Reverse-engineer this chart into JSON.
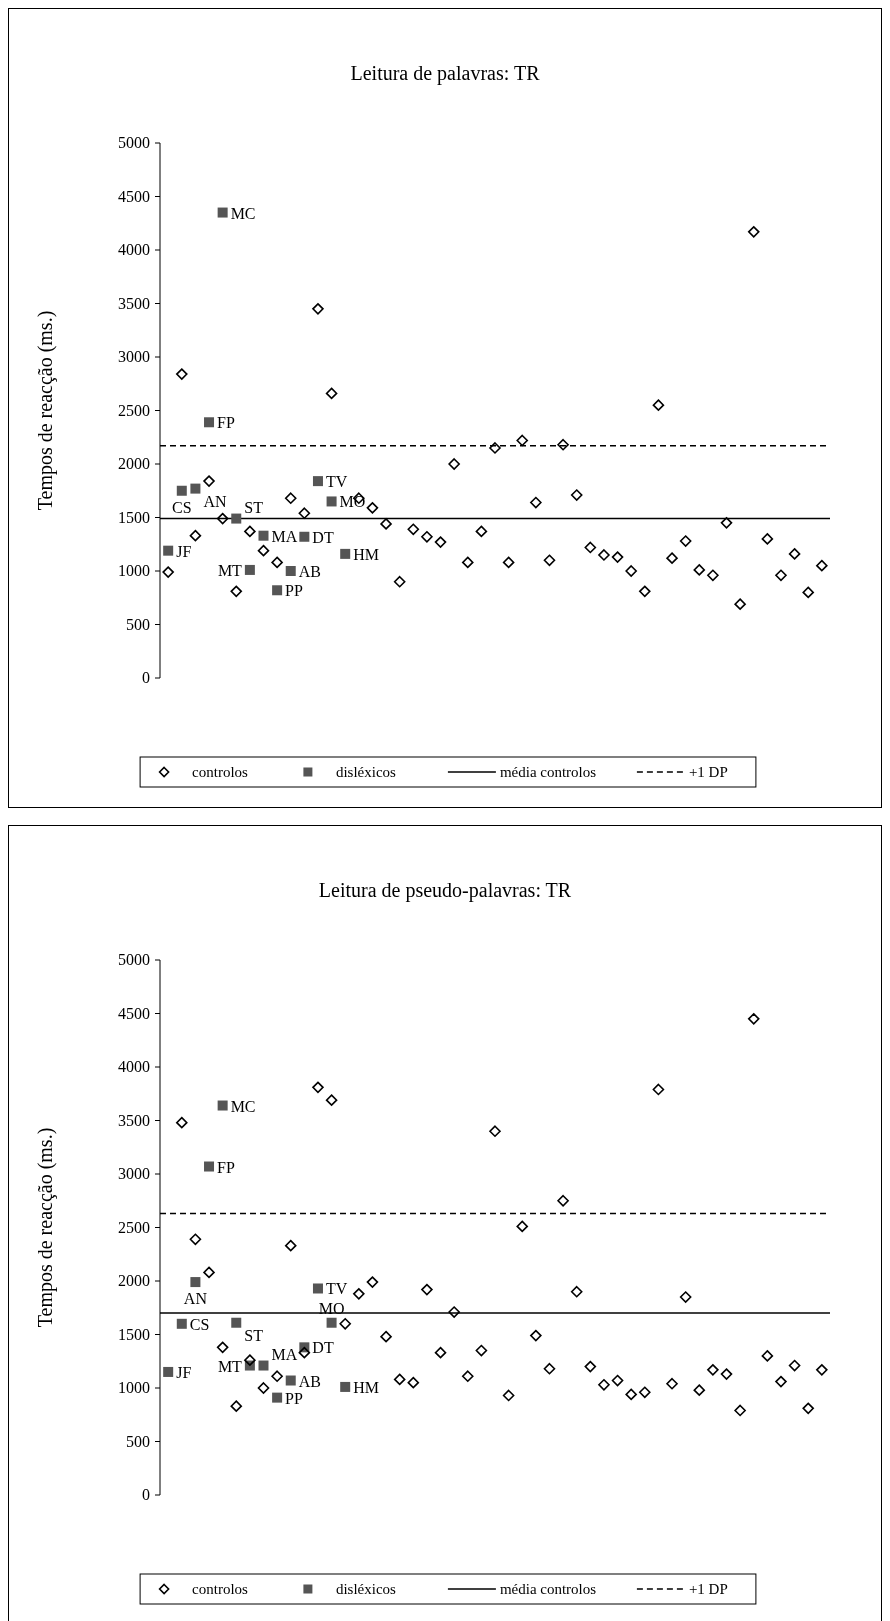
{
  "chart_data": [
    {
      "type": "scatter",
      "title": "Leitura de palavras: TR",
      "ylabel": "Tempos de reacção (ms.)",
      "categories": [
        null,
        null,
        null,
        null,
        null,
        null,
        null,
        null,
        null,
        null,
        null,
        null,
        null,
        null,
        null,
        null,
        null,
        null,
        null,
        null,
        null,
        null,
        null,
        null,
        null,
        null,
        null,
        null,
        null,
        null,
        null,
        null,
        null,
        null,
        null,
        null,
        null,
        null,
        null,
        null,
        null,
        null,
        null,
        null,
        null,
        null,
        null,
        null,
        null
      ],
      "series": [
        {
          "name": "controlos",
          "color": "#000000",
          "marker": "diamond",
          "values": [
            990,
            2840,
            1330,
            1840,
            1490,
            810,
            1370,
            1190,
            1080,
            1680,
            1540,
            3450,
            2660,
            null,
            1680,
            1590,
            1440,
            900,
            1390,
            1320,
            1270,
            2000,
            1080,
            1370,
            2150,
            1080,
            2220,
            1640,
            1100,
            2180,
            1710,
            1220,
            1150,
            1130,
            1000,
            810,
            2550,
            1120,
            1280,
            1010,
            960,
            1450,
            690,
            4170,
            1300,
            960,
            1160,
            800,
            1050
          ]
        },
        {
          "name": "disléxicos",
          "color": "#555555",
          "marker": "square",
          "values": [
            1190,
            1750,
            1770,
            2390,
            4350,
            1490,
            1010,
            1330,
            820,
            1000,
            1320,
            1840,
            1650,
            1160,
            null,
            null,
            null,
            null,
            null,
            null,
            null,
            null,
            null,
            null,
            null,
            null,
            null,
            null,
            null,
            null,
            null,
            null,
            null,
            null,
            null,
            null,
            null,
            null,
            null,
            null,
            null,
            null,
            null,
            null,
            null,
            null,
            null,
            null,
            null
          ],
          "value_labels": [
            "JF",
            "CS",
            "AN",
            "FP",
            "MC",
            "ST",
            "MT",
            "MA",
            "PP",
            "AB",
            "DT",
            "TV",
            "MO",
            "HM",
            null,
            null,
            null,
            null,
            null,
            null,
            null,
            null,
            null,
            null,
            null,
            null,
            null,
            null,
            null,
            null,
            null,
            null,
            null,
            null,
            null,
            null,
            null,
            null,
            null,
            null,
            null,
            null,
            null,
            null,
            null,
            null,
            null,
            null,
            null
          ]
        }
      ],
      "ref_lines": [
        {
          "axis": "y",
          "value": 1490,
          "label": "média controlos",
          "color": "#000000",
          "line_style": "solid"
        },
        {
          "axis": "y",
          "value": 2170,
          "label": "+1 DP",
          "color": "#000000",
          "line_style": "dashed"
        }
      ],
      "ylim": [
        0,
        5000
      ],
      "yticks": [
        0,
        500,
        1000,
        1500,
        2000,
        2500,
        3000,
        3500,
        4000,
        4500,
        5000
      ],
      "tick_labels": "y",
      "grid": false,
      "legend": "bottom"
    },
    {
      "type": "scatter",
      "title": "Leitura de pseudo-palavras: TR",
      "ylabel": "Tempos de reacção (ms.)",
      "categories": [
        null,
        null,
        null,
        null,
        null,
        null,
        null,
        null,
        null,
        null,
        null,
        null,
        null,
        null,
        null,
        null,
        null,
        null,
        null,
        null,
        null,
        null,
        null,
        null,
        null,
        null,
        null,
        null,
        null,
        null,
        null,
        null,
        null,
        null,
        null,
        null,
        null,
        null,
        null,
        null,
        null,
        null,
        null,
        null,
        null,
        null,
        null,
        null,
        null
      ],
      "series": [
        {
          "name": "controlos",
          "color": "#000000",
          "marker": "diamond",
          "values": [
            null,
            3480,
            2390,
            2080,
            1380,
            830,
            1260,
            1000,
            1110,
            2330,
            1330,
            3810,
            3690,
            1600,
            1880,
            1990,
            1480,
            1080,
            1050,
            1920,
            1330,
            1710,
            1110,
            1350,
            3400,
            930,
            2510,
            1490,
            1180,
            2750,
            1900,
            1200,
            1030,
            1070,
            940,
            960,
            3790,
            1040,
            1850,
            980,
            1170,
            1130,
            790,
            4450,
            1300,
            1060,
            1210,
            810,
            1170
          ]
        },
        {
          "name": "disléxicos",
          "color": "#555555",
          "marker": "square",
          "values": [
            1150,
            1600,
            1990,
            3070,
            3640,
            1610,
            1210,
            1210,
            910,
            1070,
            1380,
            1930,
            1610,
            1010,
            null,
            null,
            null,
            null,
            null,
            null,
            null,
            null,
            null,
            null,
            null,
            null,
            null,
            null,
            null,
            null,
            null,
            null,
            null,
            null,
            null,
            null,
            null,
            null,
            null,
            null,
            null,
            null,
            null,
            null,
            null,
            null,
            null,
            null,
            null
          ],
          "value_labels": [
            "JF",
            "CS",
            "AN",
            "FP",
            "MC",
            "ST",
            "MT",
            "MA",
            "PP",
            "AB",
            "DT",
            "TV",
            "MO",
            "HM",
            null,
            null,
            null,
            null,
            null,
            null,
            null,
            null,
            null,
            null,
            null,
            null,
            null,
            null,
            null,
            null,
            null,
            null,
            null,
            null,
            null,
            null,
            null,
            null,
            null,
            null,
            null,
            null,
            null,
            null,
            null,
            null,
            null,
            null,
            null
          ]
        }
      ],
      "ref_lines": [
        {
          "axis": "y",
          "value": 1700,
          "label": "média controlos",
          "color": "#000000",
          "line_style": "solid"
        },
        {
          "axis": "y",
          "value": 2630,
          "label": "+1 DP",
          "color": "#000000",
          "line_style": "dashed"
        }
      ],
      "ylim": [
        0,
        5000
      ],
      "yticks": [
        0,
        500,
        1000,
        1500,
        2000,
        2500,
        3000,
        3500,
        4000,
        4500,
        5000
      ],
      "tick_labels": "y",
      "grid": false,
      "legend": "bottom"
    }
  ]
}
